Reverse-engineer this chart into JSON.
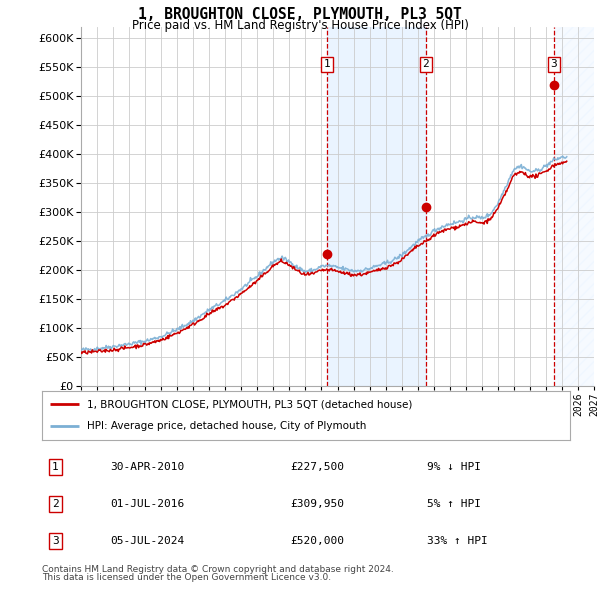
{
  "title": "1, BROUGHTON CLOSE, PLYMOUTH, PL3 5QT",
  "subtitle": "Price paid vs. HM Land Registry's House Price Index (HPI)",
  "legend_label_red": "1, BROUGHTON CLOSE, PLYMOUTH, PL3 5QT (detached house)",
  "legend_label_blue": "HPI: Average price, detached house, City of Plymouth",
  "sales": [
    {
      "num": 1,
      "date_str": "30-APR-2010",
      "date_dec": 2010.33,
      "price": 227500,
      "rel": "9% ↓ HPI"
    },
    {
      "num": 2,
      "date_str": "01-JUL-2016",
      "date_dec": 2016.5,
      "price": 309950,
      "rel": "5% ↑ HPI"
    },
    {
      "num": 3,
      "date_str": "05-JUL-2024",
      "date_dec": 2024.51,
      "price": 520000,
      "rel": "33% ↑ HPI"
    }
  ],
  "footer1": "Contains HM Land Registry data © Crown copyright and database right 2024.",
  "footer2": "This data is licensed under the Open Government Licence v3.0.",
  "xmin": 1995.0,
  "xmax": 2027.0,
  "ymin": 0,
  "ymax": 620000,
  "yticks": [
    0,
    50000,
    100000,
    150000,
    200000,
    250000,
    300000,
    350000,
    400000,
    450000,
    500000,
    550000,
    600000
  ],
  "background_color": "#ffffff",
  "grid_color": "#cccccc",
  "hpi_line_color": "#7bafd4",
  "sale_line_color": "#cc0000",
  "shade_color": "#ddeeff",
  "hatch_color": "#aaccee"
}
